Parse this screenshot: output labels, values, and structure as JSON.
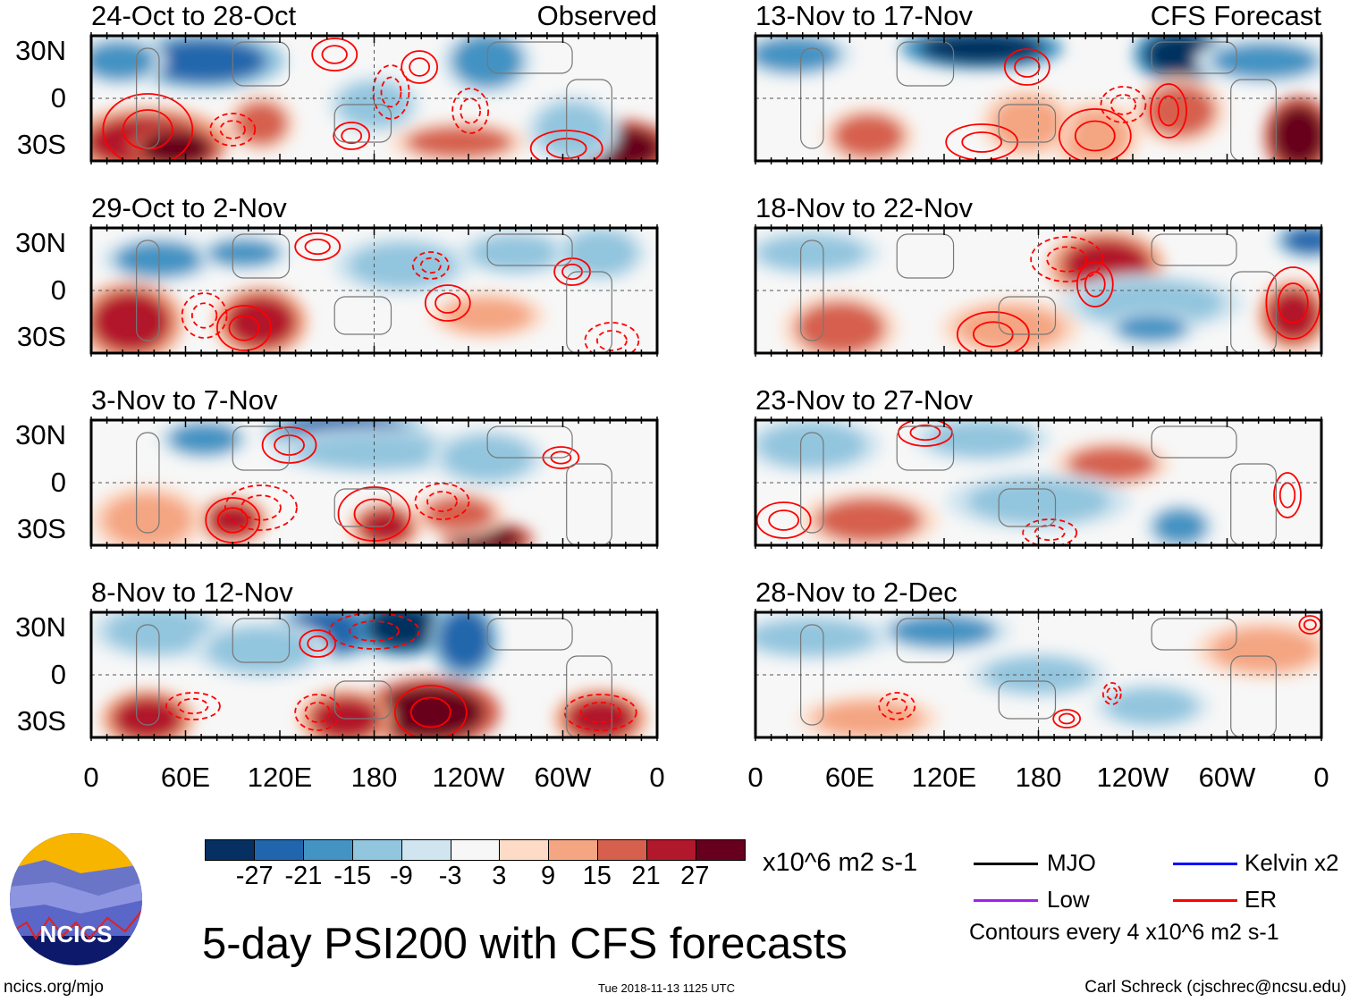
{
  "panels_left": [
    {
      "title": "24-Oct to 28-Oct",
      "tag": "Observed"
    },
    {
      "title": "29-Oct to 2-Nov",
      "tag": ""
    },
    {
      "title": "3-Nov to 7-Nov",
      "tag": ""
    },
    {
      "title": "8-Nov to 12-Nov",
      "tag": ""
    }
  ],
  "panels_right": [
    {
      "title": "13-Nov to 17-Nov",
      "tag": "CFS Forecast"
    },
    {
      "title": "18-Nov to 22-Nov",
      "tag": ""
    },
    {
      "title": "23-Nov to 27-Nov",
      "tag": ""
    },
    {
      "title": "28-Nov to 2-Dec",
      "tag": ""
    }
  ],
  "lat_labels": [
    "30N",
    "0",
    "30S"
  ],
  "lon_labels": [
    "0",
    "60E",
    "120E",
    "180",
    "120W",
    "60W",
    "0"
  ],
  "chart_data": {
    "type": "heatmap",
    "title": "5-day PSI200 with CFS forecasts",
    "units": "x10^6 m2 s-1",
    "colorbar_levels": [
      -27,
      -21,
      -15,
      -9,
      -3,
      3,
      9,
      15,
      21,
      27
    ],
    "colorbar_colors": [
      "#053061",
      "#2166ac",
      "#4393c3",
      "#92c5de",
      "#d1e5f0",
      "#f7f7f7",
      "#fddbc7",
      "#f4a582",
      "#d6604d",
      "#b2182b",
      "#67001f"
    ],
    "contour_interval": "Contours every 4 x10^6 m2 s-1",
    "legend": [
      {
        "label": "MJO",
        "color": "#000000"
      },
      {
        "label": "Kelvin x2",
        "color": "#0000ff"
      },
      {
        "label": "Low",
        "color": "#a020f0"
      },
      {
        "label": "ER",
        "color": "#ff0000"
      }
    ]
  },
  "footer": {
    "site": "ncics.org/mjo",
    "timestamp": "Tue 2018-11-13 1125 UTC",
    "author": "Carl Schreck (cjschrec@ncsu.edu)"
  },
  "logo": {
    "text": "NCICS"
  }
}
